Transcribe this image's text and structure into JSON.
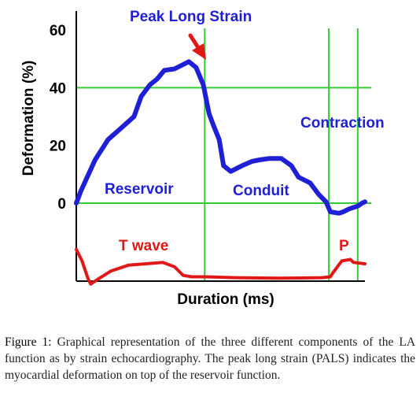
{
  "chart_data": {
    "type": "line",
    "ylabel": "Deformation (%)",
    "xlabel": "Duration (ms)",
    "yticks": [
      60,
      40,
      20,
      0
    ],
    "ylim": [
      -28,
      65
    ],
    "xlim": [
      0,
      100
    ],
    "colors": {
      "strain": "#1f1fd6",
      "ecg": "#e01818",
      "guides": "#33cc33",
      "axis": "#000000"
    },
    "strain_curve": {
      "x": [
        0,
        1.5,
        6.5,
        11,
        15.5,
        20,
        22.5,
        24,
        25.5,
        28,
        30.5,
        34,
        37,
        39,
        41.5,
        44,
        46,
        47.5,
        49.5,
        51,
        53.5,
        57.5,
        61,
        63.5,
        67,
        71,
        74.5,
        77,
        81,
        84,
        86.5,
        88,
        91,
        92.5,
        94.5,
        96,
        97.5,
        99,
        100
      ],
      "y": [
        0,
        4,
        15,
        22,
        26,
        30,
        37,
        39,
        41,
        43,
        46,
        46.5,
        48,
        49,
        47,
        41,
        31,
        27,
        22,
        13,
        11,
        13,
        14.5,
        15,
        15.5,
        15.5,
        13,
        9,
        7,
        3,
        0.5,
        -3,
        -3.5,
        -3,
        -2,
        -1.5,
        -1,
        0,
        0.5
      ]
    },
    "ecg_curve": {
      "x": [
        0,
        2,
        4,
        5,
        8,
        12,
        18,
        24,
        30,
        34,
        37,
        40,
        45,
        55,
        70,
        85,
        88,
        89,
        92,
        95,
        96,
        100
      ],
      "y": [
        -16,
        -20,
        -26,
        -28,
        -26,
        -23.5,
        -21.5,
        -21,
        -20.5,
        -22,
        -25,
        -25.5,
        -25.5,
        -25.8,
        -26,
        -25.8,
        -25.5,
        -24,
        -20,
        -19.5,
        -20.5,
        -21
      ]
    },
    "vlines_x": [
      44.5,
      87.5,
      97.5
    ],
    "hlines_y": [
      40,
      0
    ],
    "annotations": {
      "peak": "Peak Long Strain",
      "reservoir": "Reservoir",
      "conduit": "Conduit",
      "contraction": "Contraction",
      "twave": "T wave",
      "p": "P"
    }
  },
  "caption": {
    "label": "Figure 1:",
    "text": "Graphical representation of the three different components of the LA function as by strain echocardiography. The peak long strain (PALS) indicates the myocardial deformation on top of the reservoir function."
  }
}
